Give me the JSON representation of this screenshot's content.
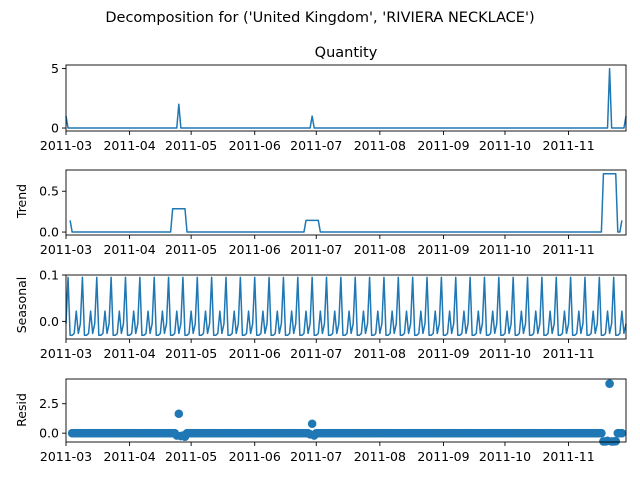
{
  "suptitle": "Decomposition for ('United Kingdom', 'RIVIERA NECKLACE')",
  "line_color": "#1f77b4",
  "x_ticks": [
    "2011-03",
    "2011-04",
    "2011-05",
    "2011-06",
    "2011-07",
    "2011-08",
    "2011-09",
    "2011-10",
    "2011-11"
  ],
  "chart_data": [
    {
      "type": "line",
      "title": "Quantity",
      "ylabel": "",
      "xlim": [
        "2011-03-01",
        "2011-11-29"
      ],
      "ylim": [
        -0.25,
        5.3
      ],
      "yticks": [
        {
          "value": 0,
          "label": "0"
        },
        {
          "value": 5,
          "label": "5"
        }
      ],
      "points": [
        {
          "date": "2011-03-01",
          "value": 1
        },
        {
          "date": "2011-03-02",
          "value": 0
        },
        {
          "date": "2011-04-24",
          "value": 0
        },
        {
          "date": "2011-04-25",
          "value": 2
        },
        {
          "date": "2011-04-26",
          "value": 0
        },
        {
          "date": "2011-06-28",
          "value": 0
        },
        {
          "date": "2011-06-29",
          "value": 1
        },
        {
          "date": "2011-06-30",
          "value": 0
        },
        {
          "date": "2011-11-20",
          "value": 0
        },
        {
          "date": "2011-11-21",
          "value": 5
        },
        {
          "date": "2011-11-22",
          "value": 0
        },
        {
          "date": "2011-11-28",
          "value": 0
        },
        {
          "date": "2011-11-29",
          "value": 1
        }
      ]
    },
    {
      "type": "line",
      "title": "",
      "ylabel": "Trend",
      "xlim": [
        "2011-03-01",
        "2011-11-29"
      ],
      "ylim": [
        -0.036,
        0.76
      ],
      "yticks": [
        {
          "value": 0.0,
          "label": "0.0"
        },
        {
          "value": 0.5,
          "label": "0.5"
        }
      ],
      "points": [
        {
          "date": "2011-03-03",
          "value": 0.143
        },
        {
          "date": "2011-03-04",
          "value": 0
        },
        {
          "date": "2011-04-21",
          "value": 0
        },
        {
          "date": "2011-04-22",
          "value": 0.286
        },
        {
          "date": "2011-04-28",
          "value": 0.286
        },
        {
          "date": "2011-04-29",
          "value": 0
        },
        {
          "date": "2011-06-25",
          "value": 0
        },
        {
          "date": "2011-06-26",
          "value": 0.143
        },
        {
          "date": "2011-07-02",
          "value": 0.143
        },
        {
          "date": "2011-07-03",
          "value": 0
        },
        {
          "date": "2011-11-17",
          "value": 0
        },
        {
          "date": "2011-11-18",
          "value": 0.714
        },
        {
          "date": "2011-11-24",
          "value": 0.714
        },
        {
          "date": "2011-11-25",
          "value": 0
        },
        {
          "date": "2011-11-26",
          "value": 0
        },
        {
          "date": "2011-11-27",
          "value": 0.143
        }
      ]
    },
    {
      "type": "line",
      "title": "",
      "ylabel": "Seasonal",
      "xlim": [
        "2011-03-01",
        "2011-11-29"
      ],
      "ylim": [
        -0.038,
        0.1
      ],
      "yticks": [
        {
          "value": 0.0,
          "label": "0.0"
        },
        {
          "value": 0.1,
          "label": "0.1"
        }
      ],
      "period_days": 7,
      "first_date": "2011-03-01",
      "last_date": "2011-11-29",
      "seasonal_pattern": [
        -0.005,
        0.095,
        -0.03,
        -0.03,
        -0.026,
        0.022,
        -0.026
      ]
    },
    {
      "type": "scatter",
      "title": "",
      "ylabel": "Resid",
      "xlim": [
        "2011-03-01",
        "2011-11-29"
      ],
      "ylim": [
        -0.75,
        4.6
      ],
      "yticks": [
        {
          "value": 0.0,
          "label": "0.0"
        },
        {
          "value": 2.5,
          "label": "2.5"
        }
      ],
      "first_date": "2011-03-04",
      "last_date": "2011-11-27",
      "baseline_value": 0.0,
      "notable_points": [
        {
          "date": "2011-04-24",
          "value": -0.2
        },
        {
          "date": "2011-04-25",
          "value": 1.65
        },
        {
          "date": "2011-04-26",
          "value": -0.25
        },
        {
          "date": "2011-04-27",
          "value": -0.2
        },
        {
          "date": "2011-04-28",
          "value": -0.3
        },
        {
          "date": "2011-06-28",
          "value": -0.1
        },
        {
          "date": "2011-06-29",
          "value": 0.8
        },
        {
          "date": "2011-06-30",
          "value": -0.2
        },
        {
          "date": "2011-11-18",
          "value": -0.7
        },
        {
          "date": "2011-11-19",
          "value": -0.7
        },
        {
          "date": "2011-11-20",
          "value": -0.65
        },
        {
          "date": "2011-11-21",
          "value": 4.2
        },
        {
          "date": "2011-11-22",
          "value": -0.7
        },
        {
          "date": "2011-11-23",
          "value": -0.7
        },
        {
          "date": "2011-11-24",
          "value": -0.68
        }
      ]
    }
  ]
}
